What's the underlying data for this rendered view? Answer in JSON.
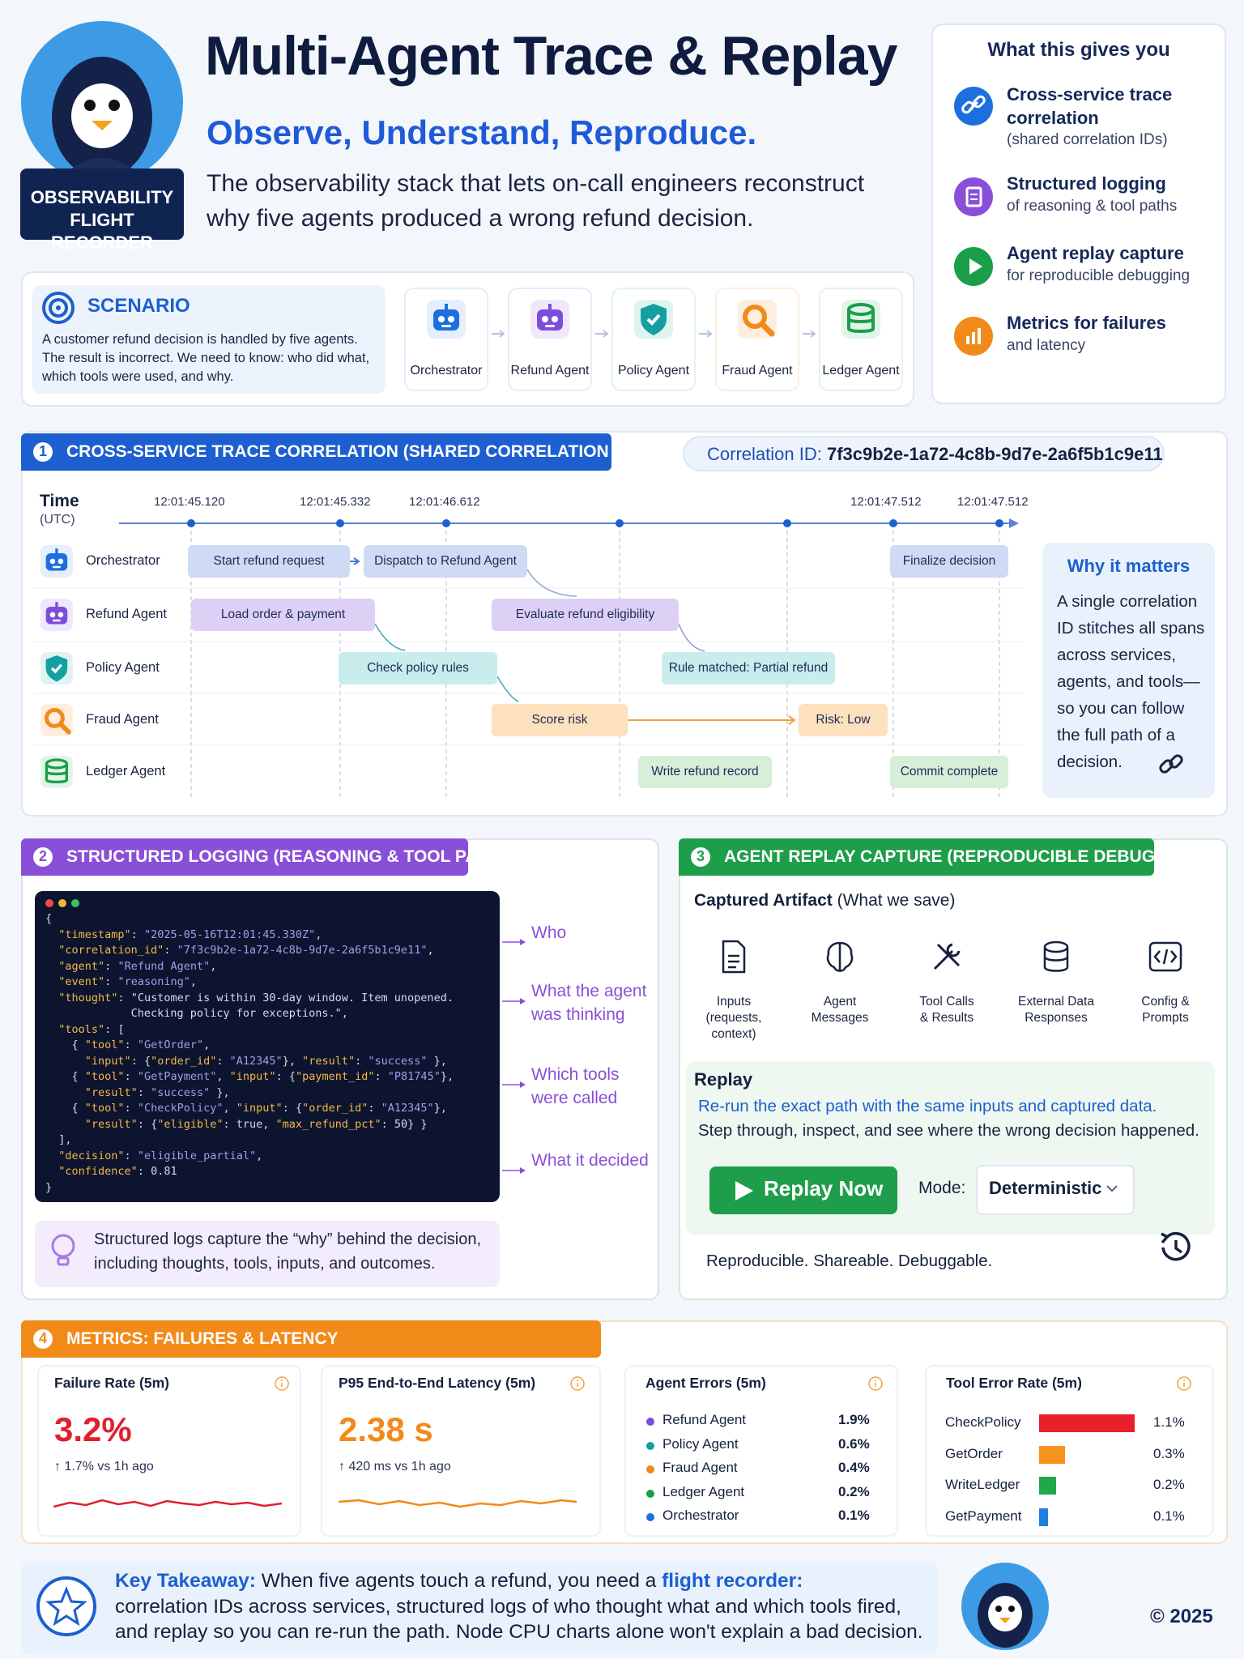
{
  "header": {
    "badge": [
      "OBSERVABILITY",
      "FLIGHT RECORDER"
    ],
    "title": "Multi-Agent Trace & Replay",
    "subtitle": "Observe, Understand, Reproduce.",
    "description": [
      "The observability stack that lets on-call engineers reconstruct",
      "why five agents produced a wrong refund decision."
    ]
  },
  "benefits": {
    "title": "What this gives you",
    "items": [
      {
        "title": "Cross-service trace correlation",
        "detail": "(shared correlation IDs)"
      },
      {
        "title": "Structured logging",
        "detail": "of reasoning & tool paths"
      },
      {
        "title": "Agent replay capture",
        "detail": "for reproducible debugging"
      },
      {
        "title": "Metrics for failures",
        "detail": "and latency"
      }
    ]
  },
  "scenario": {
    "title": "SCENARIO",
    "text": "A customer refund decision is handled by five agents. The result is incorrect. We need to know: who did what, which tools were used, and why.",
    "agents": [
      "Orchestrator",
      "Refund Agent",
      "Policy Agent",
      "Fraud Agent",
      "Ledger Agent"
    ]
  },
  "trace": {
    "number": "1",
    "title": "CROSS-SERVICE TRACE CORRELATION (SHARED CORRELATION ID)",
    "correlation_label": "Correlation ID:",
    "correlation_id": "7f3c9b2e-1a72-4c8b-9d7e-2a6f5b1c9e11",
    "time_label": "Time",
    "time_unit": "(UTC)",
    "timestamps": [
      "12:01:45.120",
      "12:01:45.332",
      "12:01:46.612",
      "12:01:47.512",
      "12:01:47.512"
    ],
    "lanes": [
      {
        "name": "Orchestrator",
        "spans": [
          "Start refund request",
          "Dispatch to Refund Agent",
          "Finalize decision"
        ]
      },
      {
        "name": "Refund Agent",
        "spans": [
          "Load order & payment",
          "Evaluate refund eligibility"
        ]
      },
      {
        "name": "Policy Agent",
        "spans": [
          "Check policy rules",
          "Rule matched: Partial refund"
        ]
      },
      {
        "name": "Fraud Agent",
        "spans": [
          "Score risk",
          "Risk: Low"
        ]
      },
      {
        "name": "Ledger Agent",
        "spans": [
          "Write refund record",
          "Commit complete"
        ]
      }
    ],
    "why_title": "Why it matters",
    "why_text": "A single correlation ID stitches all spans across services, agents, and tools—so you can follow the full path of a decision."
  },
  "logging": {
    "number": "2",
    "title": "STRUCTURED LOGGING (REASONING & TOOL PATHS)",
    "code": [
      "{",
      "  \"timestamp\": \"2025-05-16T12:01:45.330Z\",",
      "  \"correlation_id\": \"7f3c9b2e-1a72-4c8b-9d7e-2a6f5b1c9e11\",",
      "  \"agent\": \"Refund Agent\",",
      "  \"event\": \"reasoning\",",
      "  \"thought\": \"Customer is within 30-day window. Item unopened.",
      "             Checking policy for exceptions.\",",
      "  \"tools\": [",
      "    { \"tool\": \"GetOrder\",",
      "      \"input\": {\"order_id\": \"A12345\"}, \"result\": \"success\" },",
      "    { \"tool\": \"GetPayment\", \"input\": {\"payment_id\": \"P81745\"},",
      "      \"result\": \"success\" },",
      "    { \"tool\": \"CheckPolicy\", \"input\": {\"order_id\": \"A12345\"},",
      "      \"result\": {\"eligible\": true, \"max_refund_pct\": 50} }",
      "  ],",
      "  \"decision\": \"eligible_partial\",",
      "  \"confidence\": 0.81",
      "}"
    ],
    "annotations": [
      [
        "Who"
      ],
      [
        "What the agent",
        "was thinking"
      ],
      [
        "Which tools",
        "were called"
      ],
      [
        "What it decided"
      ]
    ],
    "note": [
      "Structured logs capture the “why” behind the decision,",
      "including thoughts, tools, inputs, and outcomes."
    ]
  },
  "replay": {
    "number": "3",
    "title": "AGENT REPLAY CAPTURE (REPRODUCIBLE DEBUGGING)",
    "artifact_title": "Captured Artifact",
    "artifact_note": "(What we save)",
    "artifacts": [
      [
        "Inputs",
        "(requests,",
        "context)"
      ],
      [
        "Agent",
        "Messages"
      ],
      [
        "Tool Calls",
        "& Results"
      ],
      [
        "External Data",
        "Responses"
      ],
      [
        "Config &",
        "Prompts"
      ]
    ],
    "replay_title": "Replay",
    "replay_text": [
      "Re-run the exact path with the same inputs and captured data.",
      "Step through, inspect, and see where the wrong decision happened."
    ],
    "button": "Replay Now",
    "mode_label": "Mode:",
    "mode": "Deterministic",
    "footer": "Reproducible. Shareable. Debuggable."
  },
  "metrics": {
    "number": "4",
    "title": "METRICS: FAILURES & LATENCY",
    "failure": {
      "title": "Failure Rate (5m)",
      "value": "3.2%",
      "delta": "↑ 1.7% vs 1h ago"
    },
    "latency": {
      "title": "P95 End-to-End Latency (5m)",
      "value": "2.38 s",
      "delta": "↑ 420 ms vs 1h ago"
    },
    "agent_errors": {
      "title": "Agent Errors (5m)",
      "rows": [
        {
          "name": "Refund Agent",
          "value": "1.9%",
          "color": "#7c4ddb"
        },
        {
          "name": "Policy Agent",
          "value": "0.6%",
          "color": "#14a0a0"
        },
        {
          "name": "Fraud Agent",
          "value": "0.4%",
          "color": "#f28a1a"
        },
        {
          "name": "Ledger Agent",
          "value": "0.2%",
          "color": "#1a9e4a"
        },
        {
          "name": "Orchestrator",
          "value": "0.1%",
          "color": "#1d6fe0"
        }
      ]
    },
    "tool_errors": {
      "title": "Tool Error Rate (5m)",
      "rows": [
        {
          "name": "CheckPolicy",
          "value": 1.1,
          "label": "1.1%",
          "color": "#e8202a"
        },
        {
          "name": "GetOrder",
          "value": 0.3,
          "label": "0.3%",
          "color": "#f6921e"
        },
        {
          "name": "WriteLedger",
          "value": 0.2,
          "label": "0.2%",
          "color": "#22a84a"
        },
        {
          "name": "GetPayment",
          "value": 0.1,
          "label": "0.1%",
          "color": "#1d80e0"
        }
      ]
    }
  },
  "takeaway": {
    "lead": "Key Takeaway:",
    "text": "When five agents touch a refund, you need a ",
    "highlight": "flight recorder:",
    "lines": [
      "correlation IDs across services, structured logs of who thought what and which tools fired,",
      "and replay so you can re-run the path. Node CPU charts alone won't explain a bad decision."
    ],
    "copyright": "© 2025"
  }
}
